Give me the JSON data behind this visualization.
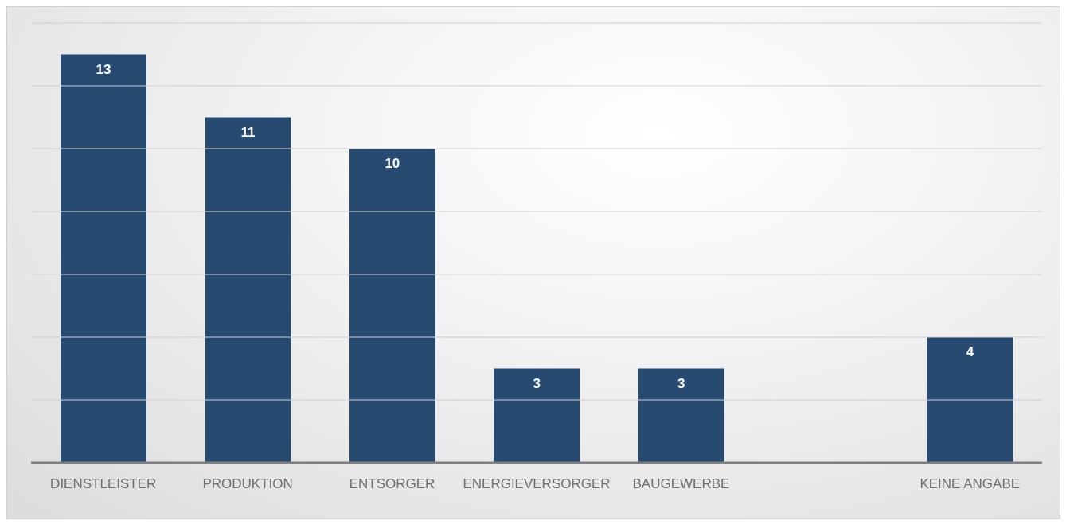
{
  "chart_data": {
    "type": "bar",
    "categories": [
      "DIENSTLEISTER",
      "PRODUKTION",
      "ENTSORGER",
      "ENERGIEVERSORGER",
      "BAUGEWERBE",
      null,
      "KEINE ANGABE"
    ],
    "values": [
      13,
      11,
      10,
      3,
      3,
      null,
      4
    ],
    "color": "#264a70",
    "ylim": [
      0,
      14
    ],
    "yticks": [
      {
        "value": 0,
        "label": null
      },
      {
        "value": 2,
        "label": null
      },
      {
        "value": 4,
        "label": null
      },
      {
        "value": 6,
        "label": null
      },
      {
        "value": 8,
        "label": null
      },
      {
        "value": 10,
        "label": null
      },
      {
        "value": 12,
        "label": null
      },
      {
        "value": 14,
        "label": null
      }
    ],
    "tick_labels": "x",
    "grid": "y",
    "data_labels": true
  }
}
